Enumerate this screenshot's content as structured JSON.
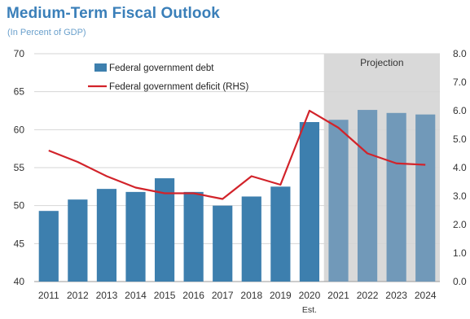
{
  "chart_data": {
    "type": "bar",
    "title": "Medium-Term Fiscal Outlook",
    "subtitle": "(In Percent of GDP)",
    "categories": [
      "2011",
      "2012",
      "2013",
      "2014",
      "2015",
      "2016",
      "2017",
      "2018",
      "2019",
      "2020",
      "2021",
      "2022",
      "2023",
      "2024"
    ],
    "category_sublabels": [
      "",
      "",
      "",
      "",
      "",
      "",
      "",
      "",
      "",
      "Est.",
      "",
      "",
      "",
      ""
    ],
    "series": [
      {
        "name": "Federal government debt",
        "type": "bar",
        "axis": "left",
        "color": "#3d7fae",
        "projection_color": "#7199b9",
        "values": [
          49.3,
          50.8,
          52.2,
          51.8,
          53.6,
          51.8,
          50.0,
          51.2,
          52.5,
          61.0,
          61.3,
          62.6,
          62.2,
          62.0
        ]
      },
      {
        "name": "Federal government deficit (RHS)",
        "type": "line",
        "axis": "right",
        "color": "#d2232a",
        "values": [
          4.6,
          4.2,
          3.7,
          3.3,
          3.1,
          3.1,
          2.9,
          3.7,
          3.4,
          6.0,
          5.4,
          4.5,
          4.15,
          4.1
        ]
      }
    ],
    "ylim": [
      40,
      70
    ],
    "y_ticks": [
      "40",
      "45",
      "50",
      "55",
      "60",
      "65",
      "70"
    ],
    "y2lim": [
      0,
      8
    ],
    "y2_ticks": [
      "0.0",
      "1.0",
      "2.0",
      "3.0",
      "4.0",
      "5.0",
      "6.0",
      "7.0",
      "8.0"
    ],
    "projection": {
      "label": "Projection",
      "from_category": "2021",
      "shade_color": "#d9d9d9"
    },
    "grid": "horizontal",
    "legend_position": "top-left"
  }
}
